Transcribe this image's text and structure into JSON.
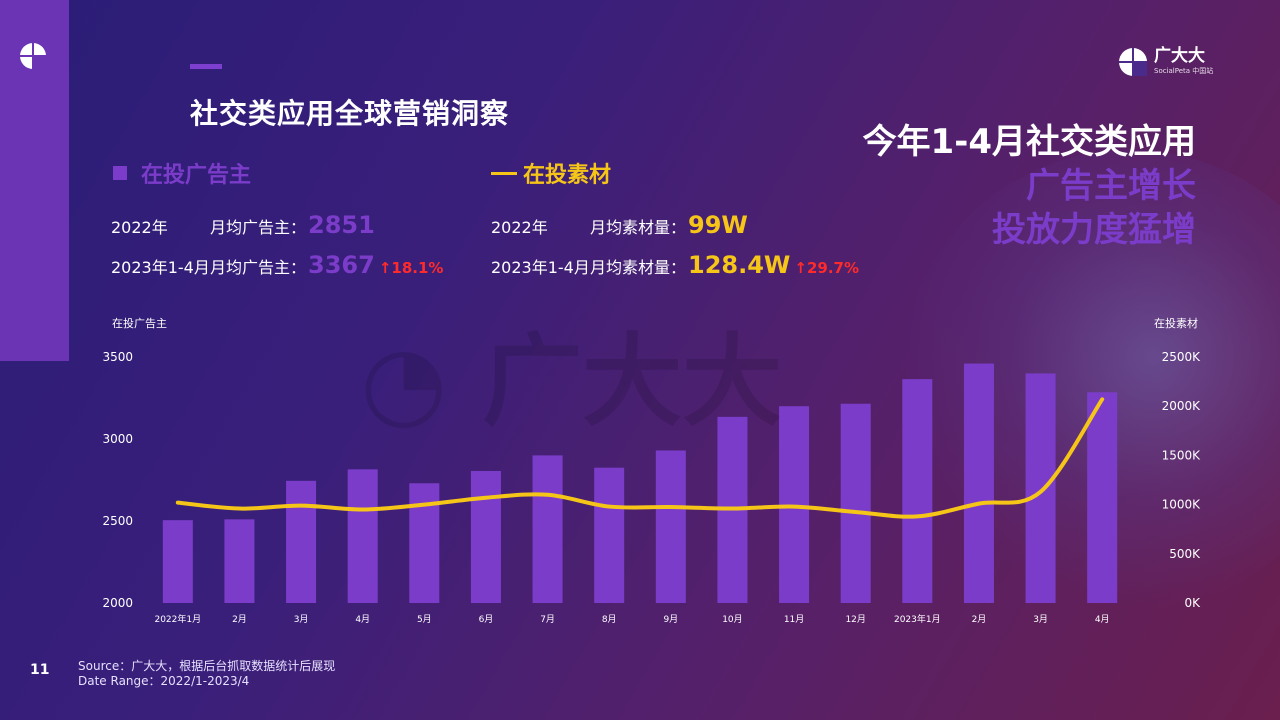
{
  "page": {
    "title": "社交类应用全球营销洞察",
    "page_number": "11",
    "brand": {
      "name": "广大大",
      "sub": "SocialPeta 中国站"
    }
  },
  "headline": {
    "line1": "今年1-4月社交类应用",
    "line2": "广告主增长",
    "line3": "投放力度猛增"
  },
  "legend": {
    "advertisers": "在投广告主",
    "materials": "在投素材"
  },
  "stats": {
    "adv_2022_year": "2022年",
    "adv_2022_label": "月均广告主：",
    "adv_2022_value": "2851",
    "adv_2023_year": "2023年1-4月",
    "adv_2023_label": "月均广告主：",
    "adv_2023_value": "3367",
    "adv_growth": "↑18.1%",
    "mat_2022_year": "2022年",
    "mat_2022_label": "月均素材量：",
    "mat_2022_value": "99W",
    "mat_2023_year": "2023年1-4月",
    "mat_2023_label": "月均素材量：",
    "mat_2023_value": "128.4W",
    "mat_growth": "↑29.7%"
  },
  "footer": {
    "source": "Source：广大大，根据后台抓取数据统计后展现",
    "range": "Date Range：2022/1-2023/4"
  },
  "colors": {
    "bar": "#7b3dc9",
    "line": "#f5c518",
    "growth": "#ff2a2a",
    "sidebar": "#6a34b4"
  },
  "chart_data": {
    "type": "bar",
    "ylabel": "在投广告主",
    "y2label": "在投素材",
    "categories": [
      "2022年1月",
      "2月",
      "3月",
      "4月",
      "5月",
      "6月",
      "7月",
      "8月",
      "9月",
      "10月",
      "11月",
      "12月",
      "2023年1月",
      "2月",
      "3月",
      "4月"
    ],
    "ylim": [
      2000,
      3500
    ],
    "yticks": [
      "2000",
      "2500",
      "3000",
      "3500"
    ],
    "y2lim": [
      0,
      2500000
    ],
    "y2ticks": [
      "0K",
      "500K",
      "1000K",
      "1500K",
      "2000K",
      "2500K"
    ],
    "series": [
      {
        "name": "在投广告主",
        "type": "bar",
        "axis": "left",
        "values": [
          2505,
          2510,
          2745,
          2815,
          2730,
          2805,
          2900,
          2825,
          2930,
          3135,
          3200,
          3215,
          3365,
          3460,
          3400,
          3285
        ]
      },
      {
        "name": "在投素材",
        "type": "line",
        "axis": "right",
        "values": [
          1020000,
          960000,
          990000,
          950000,
          1000000,
          1070000,
          1100000,
          980000,
          975000,
          960000,
          980000,
          925000,
          880000,
          1010000,
          1130000,
          2070000
        ]
      }
    ],
    "grid": false
  }
}
